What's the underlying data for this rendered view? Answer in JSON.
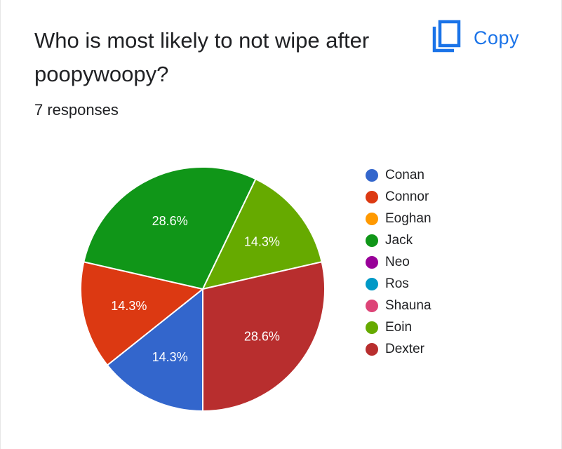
{
  "question": {
    "title": "Who is most likely to not wipe after poopywoopy?",
    "responses": "7 responses",
    "copy_label": "Copy"
  },
  "icons": {
    "copy": "copy-icon"
  },
  "colors": {
    "accent": "#1a73e8"
  },
  "chart_data": {
    "type": "pie",
    "title": "Who is most likely to not wipe after poopywoopy?",
    "total_responses": 7,
    "legend_position": "right",
    "slices": [
      {
        "name": "Conan",
        "value": 1,
        "percent": "14.3%",
        "color": "#3366cc"
      },
      {
        "name": "Connor",
        "value": 1,
        "percent": "14.3%",
        "color": "#dc3912"
      },
      {
        "name": "Eoghan",
        "value": 0,
        "percent": "0%",
        "color": "#ff9900"
      },
      {
        "name": "Jack",
        "value": 2,
        "percent": "28.6%",
        "color": "#109618"
      },
      {
        "name": "Neo",
        "value": 0,
        "percent": "0%",
        "color": "#990099"
      },
      {
        "name": "Ros",
        "value": 0,
        "percent": "0%",
        "color": "#0099c6"
      },
      {
        "name": "Shauna",
        "value": 0,
        "percent": "0%",
        "color": "#dd4477"
      },
      {
        "name": "Eoin",
        "value": 1,
        "percent": "14.3%",
        "color": "#66aa00"
      },
      {
        "name": "Dexter",
        "value": 2,
        "percent": "28.6%",
        "color": "#b82e2e"
      }
    ]
  }
}
